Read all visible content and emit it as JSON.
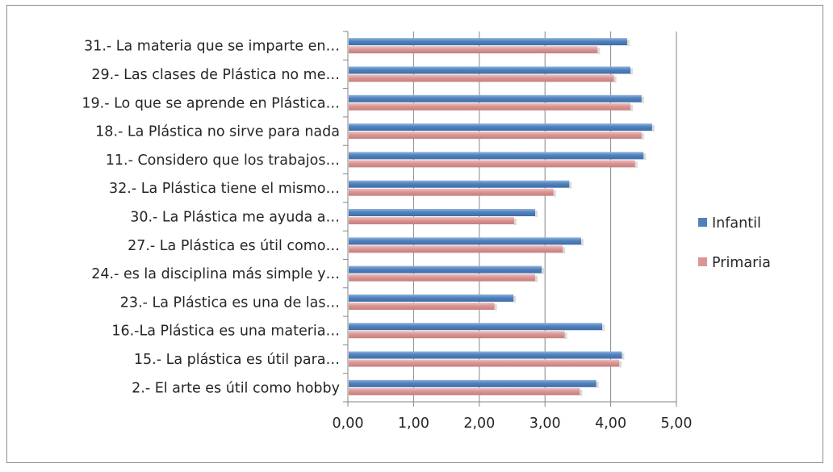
{
  "chart_data": {
    "type": "bar",
    "orientation": "horizontal",
    "title": "",
    "xlabel": "",
    "ylabel": "",
    "xlim": [
      0,
      5
    ],
    "x_ticks": [
      "0,00",
      "1,00",
      "2,00",
      "3,00",
      "4,00",
      "5,00"
    ],
    "x_tick_values": [
      0,
      1,
      2,
      3,
      4,
      5
    ],
    "grid": "vertical",
    "legend_position": "right",
    "categories": [
      "31.- La materia que se imparte en…",
      "29.- Las clases de Plástica no me…",
      "19.- Lo que se aprende en Plástica…",
      "18.- La Plástica no sirve para nada",
      "11.- Considero que los trabajos…",
      "32.- La Plástica tiene el mismo…",
      "30.- La Plástica me ayuda a…",
      "27.- La Plástica es útil como…",
      "24.- es la disciplina más simple y…",
      "23.- La Plástica es una de las…",
      "16.-La Plástica es una materia…",
      "15.- La plástica es útil para…",
      "2.- El arte es útil como hobby"
    ],
    "series": [
      {
        "name": "Infantil",
        "color": "#4f81bd",
        "values": [
          4.25,
          4.3,
          4.47,
          4.63,
          4.5,
          3.37,
          2.85,
          3.55,
          2.95,
          2.52,
          3.87,
          4.17,
          3.78
        ]
      },
      {
        "name": "Primaria",
        "color": "#d99694",
        "values": [
          3.8,
          4.05,
          4.3,
          4.47,
          4.37,
          3.13,
          2.53,
          3.27,
          2.85,
          2.23,
          3.3,
          4.13,
          3.53
        ]
      }
    ]
  }
}
